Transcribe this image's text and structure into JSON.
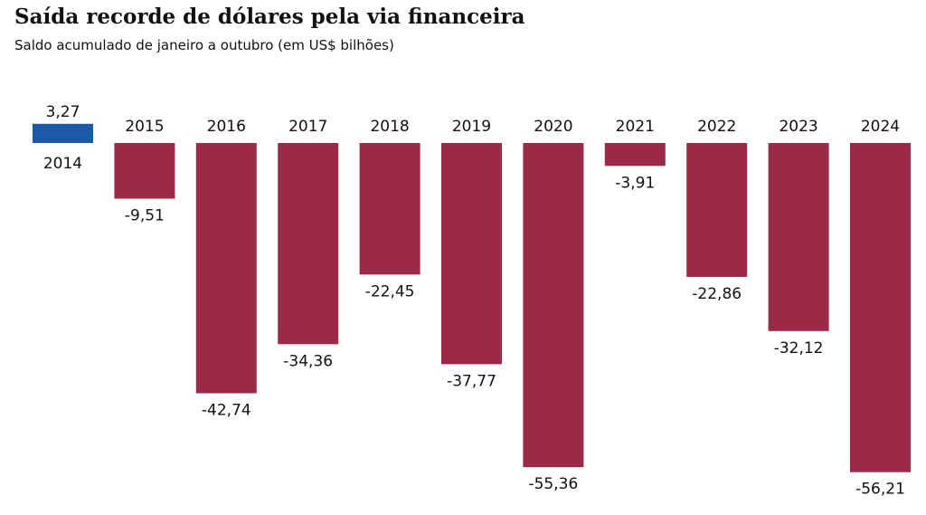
{
  "chart_data": {
    "type": "bar",
    "title": "Saída recorde de dólares pela via financeira",
    "subtitle": "Saldo acumulado de janeiro a outubro (em US$ bilhões)",
    "categories": [
      "2014",
      "2015",
      "2016",
      "2017",
      "2018",
      "2019",
      "2020",
      "2021",
      "2022",
      "2023",
      "2024"
    ],
    "values": [
      3.27,
      -9.51,
      -42.74,
      -34.36,
      -22.45,
      -37.77,
      -55.36,
      -3.91,
      -22.86,
      -32.12,
      -56.21
    ],
    "value_labels": [
      "3,27",
      "-9,51",
      "-42,74",
      "-34,36",
      "-22,45",
      "-37,77",
      "-55,36",
      "-3,91",
      "-22,86",
      "-32,12",
      "-56,21"
    ],
    "positive_color": "#1b5aa6",
    "negative_color": "#9b2a48",
    "xlabel": "",
    "ylabel": "",
    "grid": false,
    "legend": "none"
  }
}
